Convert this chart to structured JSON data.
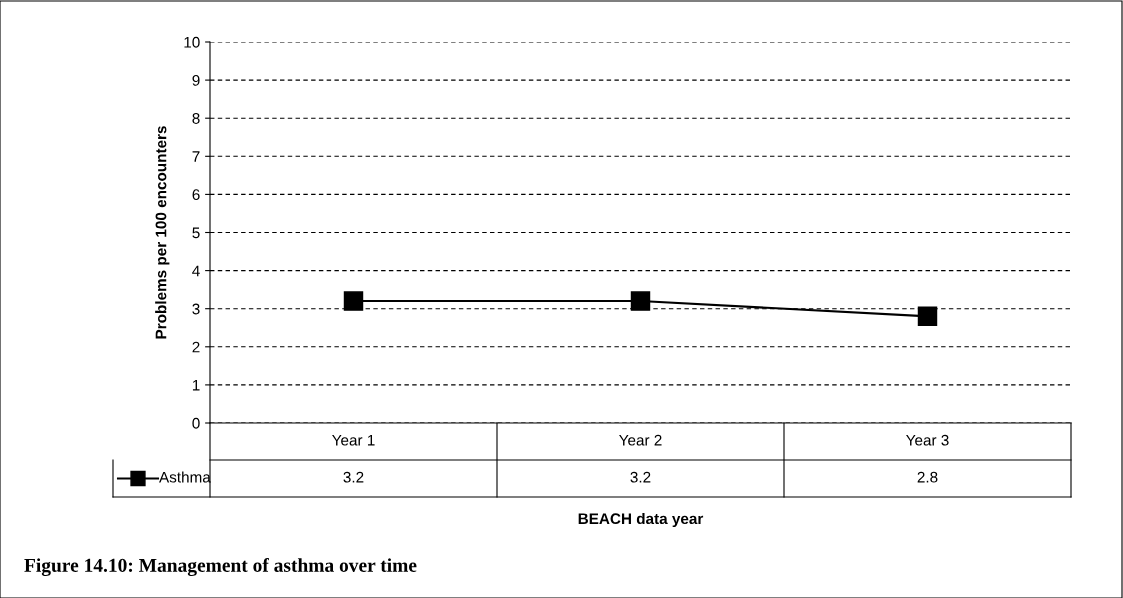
{
  "chart_data": {
    "type": "line",
    "xlabel": "BEACH data year",
    "ylabel": "Problems per 100 encounters",
    "categories": [
      "Year 1",
      "Year 2",
      "Year 3"
    ],
    "series": [
      {
        "name": "Asthma",
        "color": "#000000",
        "values": [
          3.2,
          3.2,
          2.8
        ]
      }
    ],
    "ylim": [
      0,
      10
    ],
    "yticks": [
      0,
      1,
      2,
      3,
      4,
      5,
      6,
      7,
      8,
      9,
      10
    ],
    "grid": "y",
    "marker": "square",
    "line_style": "solid",
    "data_labels": true,
    "legend": "bottom left",
    "annotations": [
      "Figure 14.10: Management of asthma over time"
    ]
  }
}
